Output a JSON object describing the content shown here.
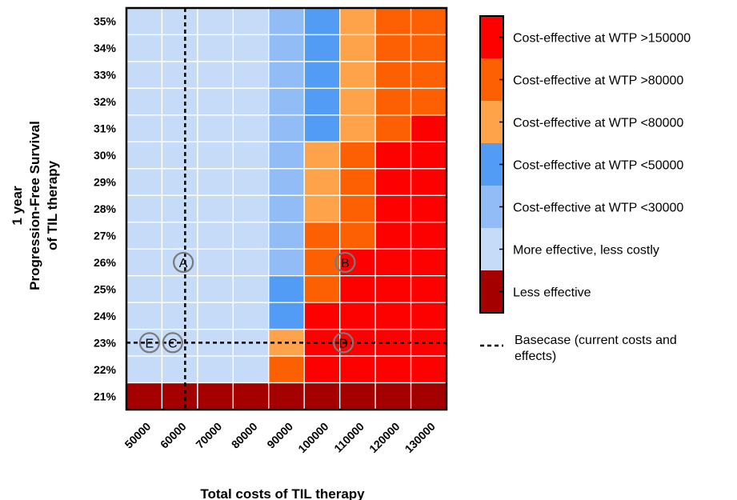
{
  "chart_data": {
    "type": "heatmap",
    "xlabel": "Total costs of TIL therapy",
    "ylabel_lines": [
      "1 year",
      "Progression-Free Survival",
      "of TIL therapy"
    ],
    "x_values": [
      50000,
      60000,
      70000,
      80000,
      90000,
      100000,
      110000,
      120000,
      130000
    ],
    "x_tick_labels": [
      "50000",
      "60000",
      "70000",
      "80000",
      "90000",
      "100000",
      "110000",
      "120000",
      "130000"
    ],
    "y_values": [
      35,
      34,
      33,
      32,
      31,
      30,
      29,
      28,
      27,
      26,
      25,
      24,
      23,
      22,
      21
    ],
    "y_tick_labels": [
      "35%",
      "34%",
      "33%",
      "32%",
      "31%",
      "30%",
      "29%",
      "28%",
      "27%",
      "26%",
      "25%",
      "24%",
      "23%",
      "22%",
      "21%"
    ],
    "categories": [
      {
        "code": 0,
        "label": "Less effective",
        "color": "#a50000"
      },
      {
        "code": 1,
        "label": "More effective, less costly",
        "color": "#c6dbf7"
      },
      {
        "code": 2,
        "label": "Cost-effective at WTP <30000",
        "color": "#92bcf5"
      },
      {
        "code": 3,
        "label": "Cost-effective at WTP <50000",
        "color": "#529cf5"
      },
      {
        "code": 4,
        "label": "Cost-effective at WTP <80000",
        "color": "#fea34a"
      },
      {
        "code": 5,
        "label": "Cost-effective at WTP >80000",
        "color": "#fd6002"
      },
      {
        "code": 6,
        "label": "Cost-effective at WTP >150000",
        "color": "#fd0000"
      }
    ],
    "grid": [
      [
        1,
        1,
        1,
        1,
        2,
        3,
        4,
        5,
        5
      ],
      [
        1,
        1,
        1,
        1,
        2,
        3,
        4,
        5,
        5
      ],
      [
        1,
        1,
        1,
        1,
        2,
        3,
        4,
        5,
        5
      ],
      [
        1,
        1,
        1,
        1,
        2,
        3,
        4,
        5,
        5
      ],
      [
        1,
        1,
        1,
        1,
        2,
        3,
        4,
        5,
        6
      ],
      [
        1,
        1,
        1,
        1,
        2,
        4,
        5,
        6,
        6
      ],
      [
        1,
        1,
        1,
        1,
        2,
        4,
        5,
        6,
        6
      ],
      [
        1,
        1,
        1,
        1,
        2,
        4,
        5,
        6,
        6
      ],
      [
        1,
        1,
        1,
        1,
        2,
        5,
        5,
        6,
        6
      ],
      [
        1,
        1,
        1,
        1,
        2,
        5,
        6,
        6,
        6
      ],
      [
        1,
        1,
        1,
        1,
        3,
        5,
        6,
        6,
        6
      ],
      [
        1,
        1,
        1,
        1,
        3,
        6,
        6,
        6,
        6
      ],
      [
        1,
        1,
        1,
        1,
        4,
        6,
        6,
        6,
        6
      ],
      [
        1,
        1,
        1,
        1,
        5,
        6,
        6,
        6,
        6
      ],
      [
        0,
        0,
        0,
        0,
        0,
        0,
        0,
        0,
        0
      ]
    ],
    "legend_order": [
      6,
      5,
      4,
      3,
      2,
      1,
      0
    ],
    "basecase": {
      "label": "Basecase (current costs and effects)",
      "x": 61500,
      "y": 23
    },
    "markers": [
      {
        "label": "A",
        "x": 61000,
        "y": 26
      },
      {
        "label": "B",
        "x": 106500,
        "y": 26
      },
      {
        "label": "C",
        "x": 58000,
        "y": 23
      },
      {
        "label": "D",
        "x": 106000,
        "y": 23
      },
      {
        "label": "E",
        "x": 51500,
        "y": 23
      }
    ]
  }
}
